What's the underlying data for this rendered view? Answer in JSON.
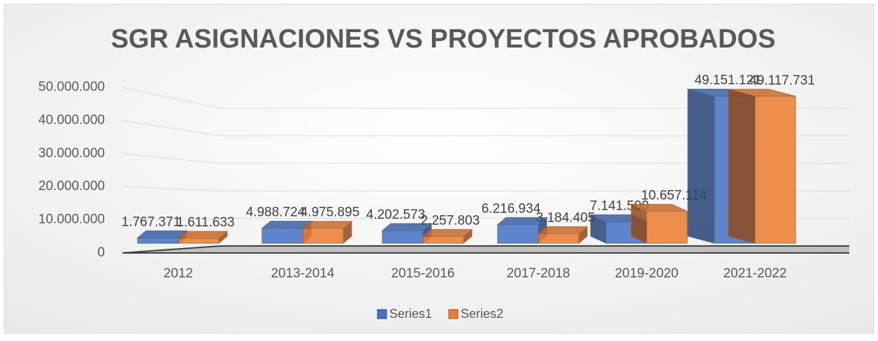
{
  "chart_data": {
    "type": "bar3d",
    "title": "SGR ASIGNACIONES VS PROYECTOS APROBADOS",
    "categories": [
      "2012",
      "2013-2014",
      "2015-2016",
      "2017-2018",
      "2019-2020",
      "2021-2022"
    ],
    "series": [
      {
        "name": "Series1",
        "color": "#4472c4",
        "values": [
          1767371,
          4988724,
          4202573,
          6216934,
          7141500,
          49151121
        ],
        "value_labels": [
          "1.767.371",
          "4.988.724",
          "4.202.573",
          "6.216.934",
          "7.141.500",
          "49.151.121"
        ]
      },
      {
        "name": "Series2",
        "color": "#ed7d31",
        "values": [
          1611633,
          4975895,
          2257803,
          3184405,
          10657114,
          49117731
        ],
        "value_labels": [
          "1.611.633",
          "4.975.895",
          "2.257.803",
          "3.184.405",
          "10.657.114",
          "49.117.731"
        ]
      }
    ],
    "ylim": [
      0,
      50000000
    ],
    "yticks": [
      0,
      {
        "value": 10000000,
        "label": "10.000.000"
      },
      {
        "value": 20000000,
        "label": "20.000.000"
      },
      {
        "value": 30000000,
        "label": "30.000.000"
      },
      {
        "value": 40000000,
        "label": "40.000.000"
      },
      {
        "value": 50000000,
        "label": "50.000.000"
      }
    ],
    "grid": true,
    "legend": "bottom"
  }
}
